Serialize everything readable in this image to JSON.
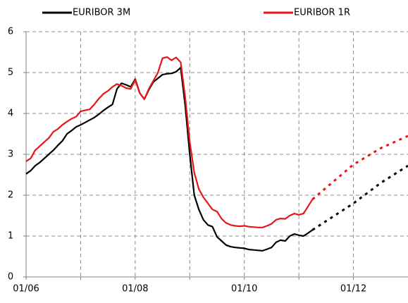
{
  "chart_data": {
    "type": "line",
    "x": [
      0,
      1,
      2,
      3,
      4,
      5,
      6,
      7,
      8,
      9,
      10,
      11,
      12,
      13,
      14,
      15,
      16,
      17,
      18,
      19,
      20,
      21,
      22,
      23,
      24,
      25,
      26,
      27,
      28,
      29,
      30,
      31,
      32,
      33,
      34,
      35,
      36,
      37,
      38,
      39,
      40,
      41,
      42,
      43,
      44,
      45,
      46,
      47,
      48,
      49,
      50,
      51,
      52,
      53,
      54,
      55,
      56,
      57,
      58,
      59,
      60,
      61,
      62,
      63,
      72,
      78,
      84
    ],
    "series": [
      {
        "name": "EURIBOR 3M",
        "color": "#000000",
        "values": [
          2.52,
          2.6,
          2.72,
          2.8,
          2.9,
          3.0,
          3.1,
          3.22,
          3.33,
          3.5,
          3.58,
          3.67,
          3.72,
          3.78,
          3.84,
          3.9,
          3.98,
          4.07,
          4.15,
          4.22,
          4.6,
          4.74,
          4.7,
          4.65,
          4.84,
          4.5,
          4.35,
          4.58,
          4.77,
          4.86,
          4.95,
          4.97,
          4.98,
          5.02,
          5.12,
          4.2,
          3.0,
          2.0,
          1.65,
          1.4,
          1.27,
          1.23,
          0.98,
          0.88,
          0.78,
          0.74,
          0.72,
          0.71,
          0.7,
          0.67,
          0.66,
          0.65,
          0.64,
          0.68,
          0.72,
          0.85,
          0.9,
          0.88,
          1.0,
          1.05,
          1.02,
          1.0,
          1.07,
          1.15,
          1.8,
          2.3,
          2.72
        ]
      },
      {
        "name": "EURIBOR 1R",
        "color": "#e8141b",
        "values": [
          2.83,
          2.9,
          3.1,
          3.2,
          3.3,
          3.4,
          3.55,
          3.62,
          3.72,
          3.8,
          3.87,
          3.92,
          4.05,
          4.08,
          4.1,
          4.22,
          4.36,
          4.48,
          4.55,
          4.65,
          4.72,
          4.68,
          4.62,
          4.6,
          4.82,
          4.5,
          4.35,
          4.6,
          4.8,
          5.0,
          5.35,
          5.38,
          5.3,
          5.37,
          5.25,
          4.4,
          3.3,
          2.55,
          2.15,
          1.95,
          1.8,
          1.65,
          1.6,
          1.42,
          1.32,
          1.27,
          1.25,
          1.24,
          1.25,
          1.23,
          1.22,
          1.21,
          1.21,
          1.25,
          1.3,
          1.4,
          1.43,
          1.42,
          1.5,
          1.55,
          1.52,
          1.55,
          1.72,
          1.9,
          2.75,
          3.15,
          3.45
        ]
      }
    ],
    "forecast_start": 63,
    "xlim": [
      0,
      84
    ],
    "xticks": [
      {
        "value": 0,
        "label": "01/06"
      },
      {
        "value": 12,
        "label": null
      },
      {
        "value": 24,
        "label": "01/08"
      },
      {
        "value": 36,
        "label": null
      },
      {
        "value": 48,
        "label": "01/10"
      },
      {
        "value": 60,
        "label": null
      },
      {
        "value": 72,
        "label": "01/12"
      }
    ],
    "ylim": [
      0,
      6
    ],
    "yticks": [
      0,
      1,
      2,
      3,
      4,
      5,
      6
    ],
    "grid": true,
    "legend": "top"
  }
}
